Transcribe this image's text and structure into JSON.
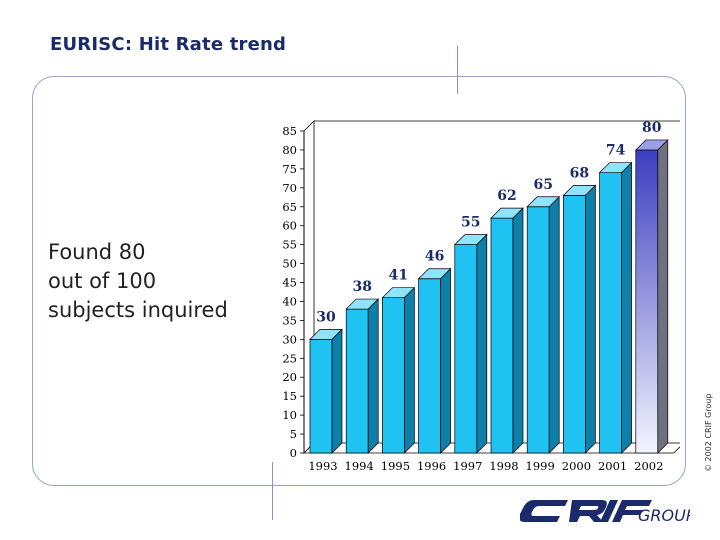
{
  "slide": {
    "title": "EURISC: Hit Rate trend",
    "body_lines": [
      "Found 80",
      "out of 100",
      "subjects inquired"
    ],
    "copyright": "© 2002 CRIF Group",
    "logo_text": "CRIFGROUP"
  },
  "chart_data": {
    "type": "bar",
    "title": "",
    "xlabel": "",
    "ylabel": "",
    "categories": [
      "1993",
      "1994",
      "1995",
      "1996",
      "1997",
      "1998",
      "1999",
      "2000",
      "2001",
      "2002"
    ],
    "values": [
      30,
      38,
      41,
      46,
      55,
      62,
      65,
      68,
      74,
      80
    ],
    "ylim": [
      0,
      85
    ],
    "yticks": [
      0,
      5,
      10,
      15,
      20,
      25,
      30,
      35,
      40,
      45,
      50,
      55,
      60,
      65,
      70,
      75,
      80,
      85
    ],
    "grid": false,
    "legend": "none",
    "colors": {
      "bar_front": "#1ec3f2",
      "bar_top": "#8fe4fb",
      "bar_side": "#0e7fa8",
      "highlight_front_top": "#3a3ec0",
      "highlight_front_bottom": "#f4f4ff",
      "label": "#1b2a6b"
    }
  }
}
